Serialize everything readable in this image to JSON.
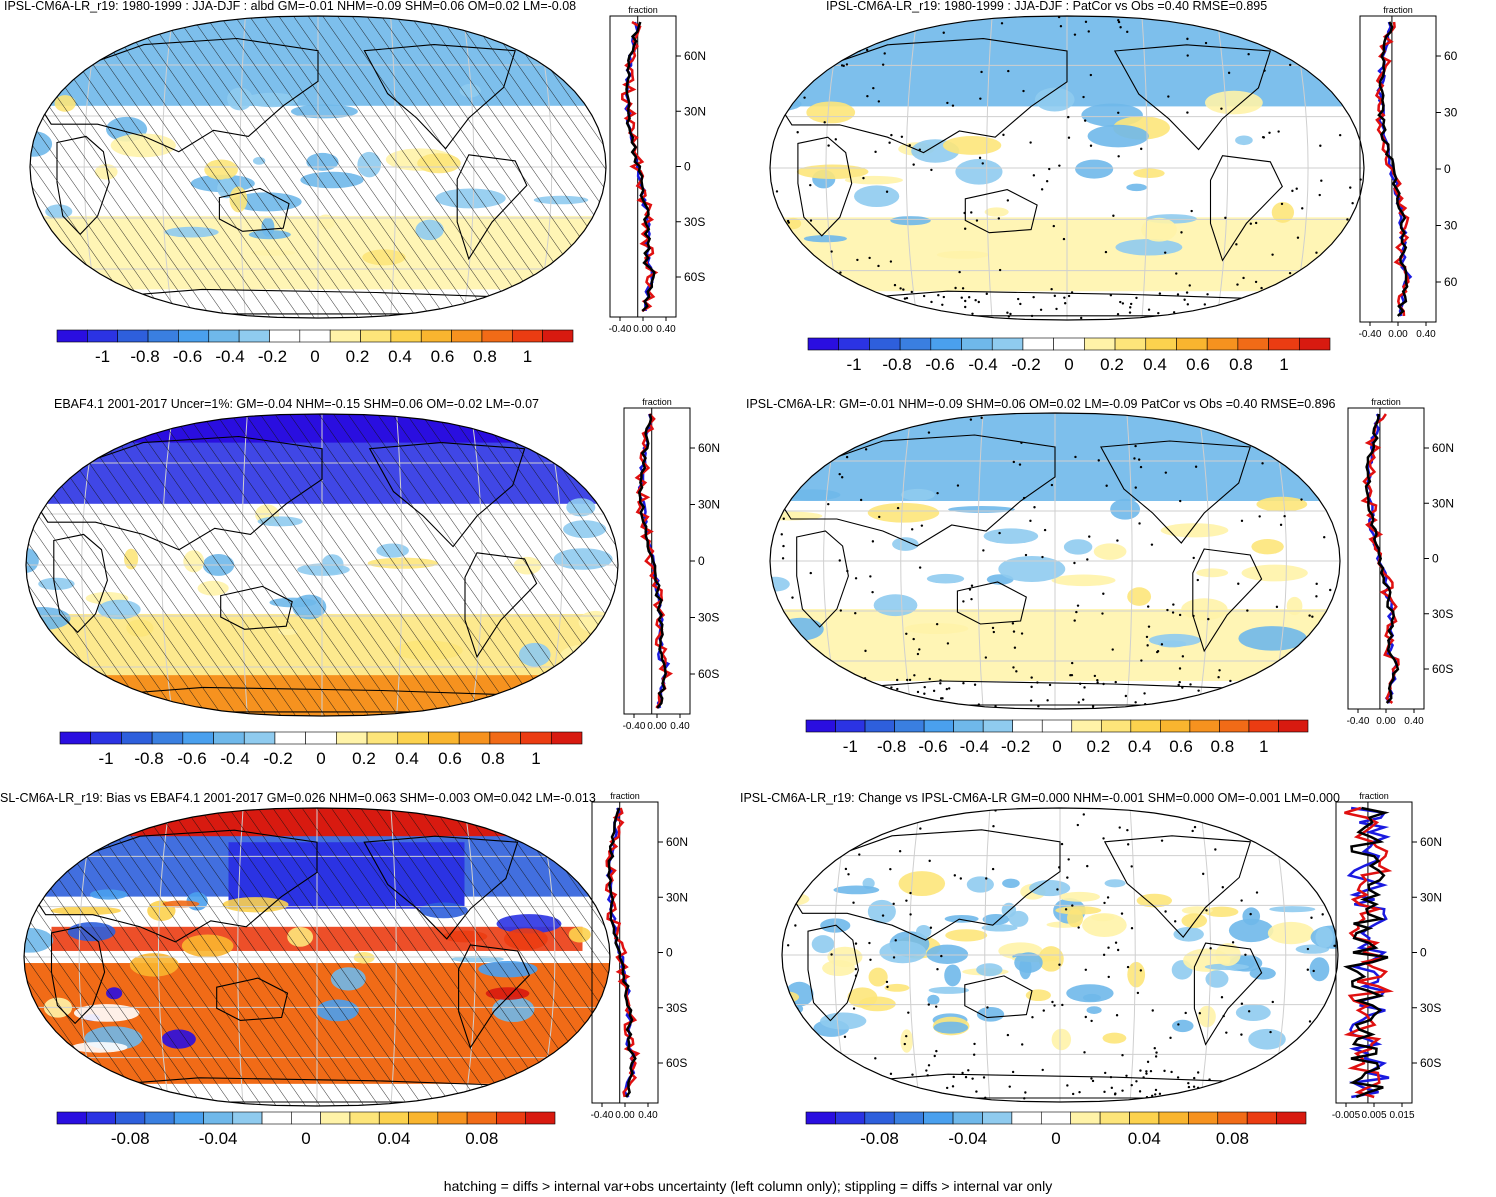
{
  "panels": [
    {
      "id": "p1",
      "title": "IPSL-CM6A-LR_r19: 1980-1999 : JJA-DJF : albd GM=-0.01 NHM=-0.09 SHM=0.06 OM=0.02 LM=-0.08",
      "pattern": "hatch",
      "scheme": "model",
      "cb_ticks": [
        "-1",
        "-0.8",
        "-0.6",
        "-0.4",
        "-0.2",
        "0",
        "0.2",
        "0.4",
        "0.6",
        "0.8",
        "1"
      ],
      "profile_header": "fraction",
      "profile_lat_labels": [
        "60N",
        "30N",
        "0",
        "30S",
        "60S"
      ],
      "profile_x_labels": [
        "-0.40",
        "0.00",
        "0.40"
      ]
    },
    {
      "id": "p2",
      "title": "IPSL-CM6A-LR_r19: 1980-1999 : JJA-DJF : PatCor vs Obs =0.40 RMSE=0.895",
      "pattern": "stipple",
      "scheme": "model",
      "cb_ticks": [
        "-1",
        "-0.8",
        "-0.6",
        "-0.4",
        "-0.2",
        "0",
        "0.2",
        "0.4",
        "0.6",
        "0.8",
        "1"
      ],
      "profile_header": "fraction",
      "profile_lat_labels": [
        "60",
        "30",
        "0",
        "30",
        "60"
      ],
      "profile_x_labels": [
        "-0.40",
        "0.00",
        "0.40"
      ]
    },
    {
      "id": "p3",
      "title": "EBAF4.1 2001-2017 Uncer=1%: GM=-0.04 NHM=-0.15 SHM=0.06 OM=-0.02 LM=-0.07",
      "pattern": "hatch",
      "scheme": "obs",
      "cb_ticks": [
        "-1",
        "-0.8",
        "-0.6",
        "-0.4",
        "-0.2",
        "0",
        "0.2",
        "0.4",
        "0.6",
        "0.8",
        "1"
      ],
      "profile_header": "fraction",
      "profile_lat_labels": [
        "60N",
        "30N",
        "0",
        "30S",
        "60S"
      ],
      "profile_x_labels": [
        "-0.40",
        "0.00",
        "0.40"
      ]
    },
    {
      "id": "p4",
      "title": "IPSL-CM6A-LR: GM=-0.01 NHM=-0.09 SHM=0.06 OM=0.02 LM=-0.09 PatCor vs Obs =0.40 RMSE=0.896",
      "pattern": "stipple",
      "scheme": "model",
      "cb_ticks": [
        "-1",
        "-0.8",
        "-0.6",
        "-0.4",
        "-0.2",
        "0",
        "0.2",
        "0.4",
        "0.6",
        "0.8",
        "1"
      ],
      "profile_header": "fraction",
      "profile_lat_labels": [
        "60N",
        "30N",
        "0",
        "30S",
        "60S"
      ],
      "profile_x_labels": [
        "-0.40",
        "0.00",
        "0.40"
      ]
    },
    {
      "id": "p5",
      "title": "SL-CM6A-LR_r19: Bias vs EBAF4.1 2001-2017 GM=0.026 NHM=0.063 SHM=-0.003 OM=0.042 LM=-0.013",
      "pattern": "hatch",
      "scheme": "bias",
      "cb_ticks": [
        "-0.08",
        "-0.04",
        "0",
        "0.04",
        "0.08"
      ],
      "profile_header": "fraction",
      "profile_lat_labels": [
        "60N",
        "30N",
        "0",
        "30S",
        "60S"
      ],
      "profile_x_labels": [
        "-0.40",
        "0.00",
        "0.40"
      ]
    },
    {
      "id": "p6",
      "title": "IPSL-CM6A-LR_r19: Change vs IPSL-CM6A-LR GM=0.000 NHM=-0.001 SHM=0.000 OM=-0.001 LM=0.000",
      "pattern": "stipple",
      "scheme": "change",
      "cb_ticks": [
        "-0.08",
        "-0.04",
        "0",
        "0.04",
        "0.08"
      ],
      "profile_header": "fraction",
      "profile_lat_labels": [
        "60N",
        "30N",
        "0",
        "30S",
        "60S"
      ],
      "profile_x_labels": [
        "-0.005",
        "0.005",
        "0.015"
      ]
    }
  ],
  "palette": [
    "#2a0ee0",
    "#2b33e3",
    "#2e5fdc",
    "#3a7fe0",
    "#4aa0ee",
    "#6fb8ea",
    "#8fcbef",
    "#ffffff",
    "#ffffff",
    "#fff3a8",
    "#fde57a",
    "#fcd24e",
    "#f9b52f",
    "#f6921f",
    "#f16b17",
    "#eb3c12",
    "#d81a10"
  ],
  "caption": "hatching = diffs > internal var+obs uncertainty (left column only); stippling = diffs > internal var only"
}
